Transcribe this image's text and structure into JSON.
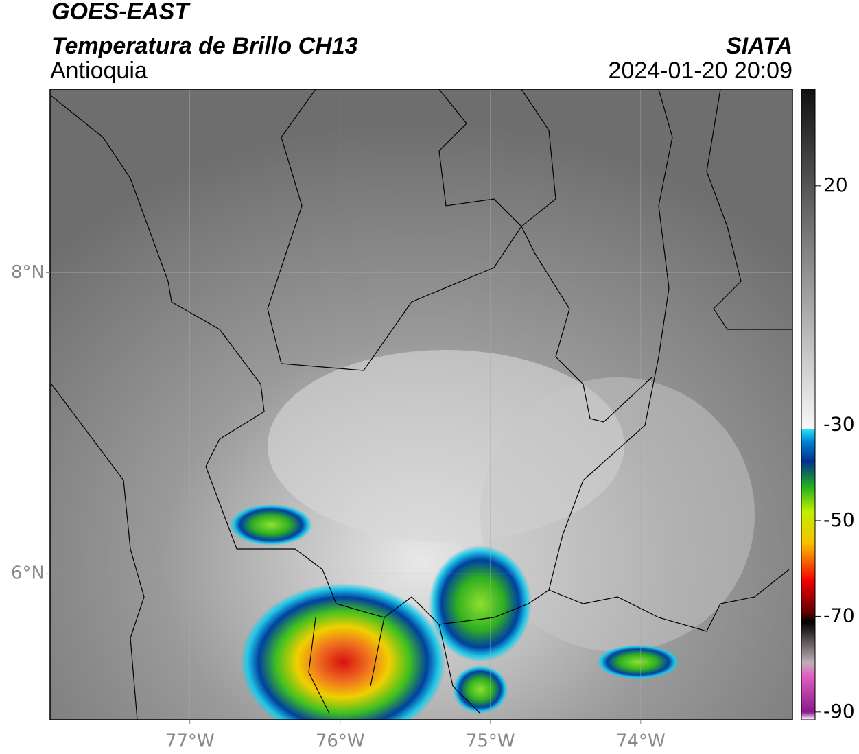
{
  "header": {
    "title": "GOES-EAST",
    "subtitle": "Temperatura de Brillo CH13",
    "region": "Antioquia",
    "source": "SIATA",
    "datetime": "2024-01-20 20:09"
  },
  "map": {
    "lonlim": [
      -77.93,
      -72.99
    ],
    "latlim": [
      5.03,
      9.22
    ],
    "lon_ticks": [
      {
        "value": -77,
        "label": "77°W"
      },
      {
        "value": -76,
        "label": "76°W"
      },
      {
        "value": -75,
        "label": "75°W"
      },
      {
        "value": -74,
        "label": "74°W"
      }
    ],
    "lat_ticks": [
      {
        "value": 8,
        "label": "8°N"
      },
      {
        "value": 6,
        "label": "6°N"
      }
    ]
  },
  "colorbar": {
    "lim": [
      -91.6,
      40.2
    ],
    "ticks": [
      20,
      -30,
      -50,
      -70,
      -90
    ]
  }
}
